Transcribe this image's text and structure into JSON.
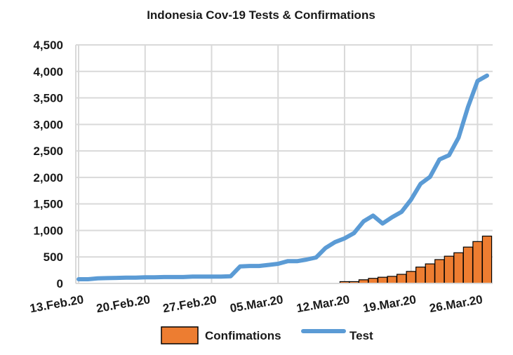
{
  "chart_data": {
    "type": "bar+line",
    "title": "Indonesia Cov-19 Tests & Confirmations",
    "xlabel": "",
    "ylabel": "",
    "ylim": [
      0,
      4500
    ],
    "y_ticks": [
      "0",
      "500",
      "1,000",
      "1,500",
      "2,000",
      "2,500",
      "3,000",
      "3,500",
      "4,000",
      "4,500"
    ],
    "x_tick_labels": [
      "13.Feb.20",
      "20.Feb.20",
      "27.Feb.20",
      "05.Mar.20",
      "12.Mar.20",
      "19.Mar.20",
      "26.Mar.20"
    ],
    "x_start_date": "13.Feb.20",
    "x_end_date": "27.Mar.20",
    "grid": true,
    "legend_position": "bottom",
    "series": [
      {
        "name": "Confimations",
        "type": "bar",
        "color": "#ED7D31",
        "x": [
          "12.Mar.20",
          "13.Mar.20",
          "14.Mar.20",
          "15.Mar.20",
          "16.Mar.20",
          "17.Mar.20",
          "18.Mar.20",
          "19.Mar.20",
          "20.Mar.20",
          "21.Mar.20",
          "22.Mar.20",
          "23.Mar.20",
          "24.Mar.20",
          "25.Mar.20",
          "26.Mar.20",
          "27.Mar.20"
        ],
        "values": [
          34,
          34,
          69,
          96,
          117,
          134,
          172,
          227,
          309,
          369,
          450,
          514,
          579,
          686,
          790,
          893
        ]
      },
      {
        "name": "Test",
        "type": "line",
        "color": "#5B9BD5",
        "x": [
          "13.Feb.20",
          "14.Feb.20",
          "15.Feb.20",
          "16.Feb.20",
          "17.Feb.20",
          "18.Feb.20",
          "19.Feb.20",
          "20.Feb.20",
          "21.Feb.20",
          "22.Feb.20",
          "23.Feb.20",
          "24.Feb.20",
          "25.Feb.20",
          "26.Feb.20",
          "27.Feb.20",
          "28.Feb.20",
          "29.Feb.20",
          "01.Mar.20",
          "02.Mar.20",
          "03.Mar.20",
          "04.Mar.20",
          "05.Mar.20",
          "06.Mar.20",
          "07.Mar.20",
          "08.Mar.20",
          "09.Mar.20",
          "10.Mar.20",
          "11.Mar.20",
          "12.Mar.20",
          "13.Mar.20",
          "14.Mar.20",
          "15.Mar.20",
          "16.Mar.20",
          "17.Mar.20",
          "18.Mar.20",
          "19.Mar.20",
          "20.Mar.20",
          "21.Mar.20",
          "22.Mar.20",
          "23.Mar.20",
          "24.Mar.20",
          "25.Mar.20",
          "26.Mar.20",
          "27.Mar.20"
        ],
        "values": [
          80,
          80,
          95,
          100,
          105,
          110,
          110,
          115,
          115,
          120,
          120,
          120,
          130,
          130,
          130,
          130,
          135,
          320,
          330,
          330,
          350,
          370,
          420,
          420,
          450,
          490,
          670,
          780,
          850,
          950,
          1170,
          1280,
          1130,
          1250,
          1350,
          1580,
          1880,
          2010,
          2340,
          2420,
          2750,
          3330,
          3820,
          3920
        ]
      }
    ]
  }
}
